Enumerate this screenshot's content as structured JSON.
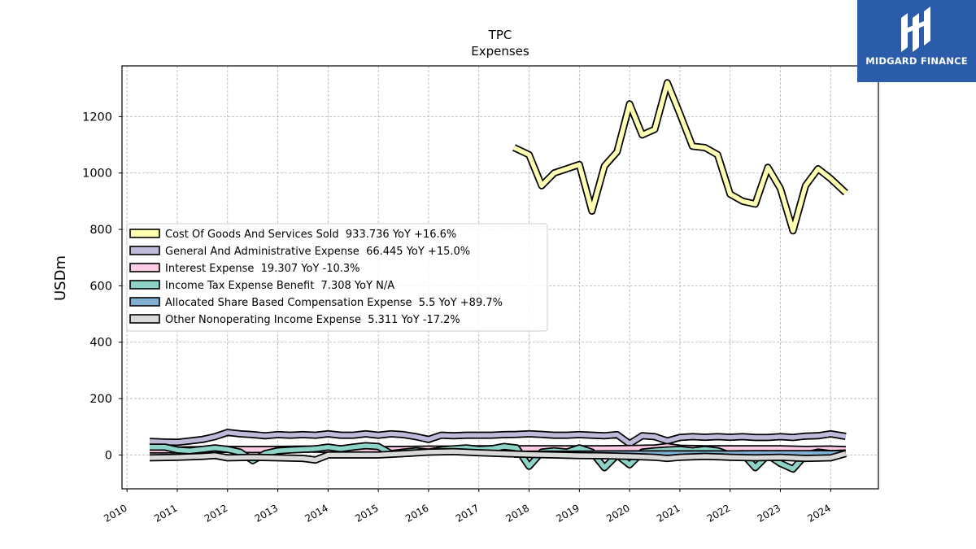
{
  "brand": {
    "name": "MIDGARD FINANCE",
    "bg_color": "#2a5caa"
  },
  "chart_data": {
    "type": "line",
    "title": "TPC",
    "subtitle": "Expenses",
    "xlabel": "",
    "ylabel": "USDm",
    "xlim": [
      2009.9,
      2024.95
    ],
    "ylim": [
      -120,
      1380
    ],
    "x_ticks": [
      2010,
      2011,
      2012,
      2013,
      2014,
      2015,
      2016,
      2017,
      2018,
      2019,
      2020,
      2021,
      2022,
      2023,
      2024
    ],
    "x_tick_labels": [
      "2010",
      "2011",
      "2012",
      "2013",
      "2014",
      "2015",
      "2016",
      "2017",
      "2018",
      "2019",
      "2020",
      "2021",
      "2022",
      "2023",
      "2024"
    ],
    "y_ticks": [
      0,
      200,
      400,
      600,
      800,
      1000,
      1200
    ],
    "y_tick_labels": [
      "0",
      "200",
      "400",
      "600",
      "800",
      "1000",
      "1200"
    ],
    "grid": true,
    "legend_position": "center-left",
    "series": [
      {
        "name": "Cost Of Goods And Services Sold",
        "legend_label": "Cost Of Goods And Services Sold  933.736 YoY +16.6%",
        "color": "#ffffb3",
        "x": [
          2017.7,
          2018.0,
          2018.25,
          2018.5,
          2018.75,
          2019.0,
          2019.25,
          2019.5,
          2019.75,
          2020.0,
          2020.25,
          2020.5,
          2020.75,
          2021.0,
          2021.25,
          2021.5,
          2021.75,
          2022.0,
          2022.25,
          2022.5,
          2022.75,
          2023.0,
          2023.25,
          2023.5,
          2023.75,
          2024.0,
          2024.3
        ],
        "values": [
          1090,
          1065,
          955,
          1000,
          1015,
          1030,
          865,
          1025,
          1075,
          1245,
          1135,
          1155,
          1320,
          1210,
          1095,
          1090,
          1065,
          925,
          900,
          890,
          1020,
          945,
          795,
          955,
          1015,
          980,
          930
        ]
      },
      {
        "name": "General And Administrative Expense",
        "legend_label": "General And Administrative Expense  66.445 YoY +15.0%",
        "color": "#bebada",
        "x": [
          2010.45,
          2010.75,
          2011.0,
          2011.25,
          2011.5,
          2011.75,
          2012.0,
          2012.25,
          2012.5,
          2012.75,
          2013.0,
          2013.25,
          2013.5,
          2013.75,
          2014.0,
          2014.25,
          2014.5,
          2014.75,
          2015.0,
          2015.25,
          2015.5,
          2015.75,
          2016.0,
          2016.25,
          2016.5,
          2016.75,
          2017.0,
          2017.25,
          2017.5,
          2017.75,
          2018.0,
          2018.25,
          2018.5,
          2018.75,
          2019.0,
          2019.25,
          2019.5,
          2019.75,
          2020.0,
          2020.25,
          2020.5,
          2020.75,
          2021.0,
          2021.25,
          2021.5,
          2021.75,
          2022.0,
          2022.25,
          2022.5,
          2022.75,
          2023.0,
          2023.25,
          2023.5,
          2023.75,
          2024.0,
          2024.3
        ],
        "values": [
          48,
          46,
          45,
          50,
          55,
          65,
          80,
          75,
          72,
          68,
          72,
          70,
          72,
          70,
          75,
          70,
          70,
          75,
          70,
          75,
          72,
          65,
          55,
          70,
          68,
          70,
          70,
          70,
          72,
          73,
          75,
          73,
          70,
          70,
          72,
          70,
          68,
          72,
          40,
          68,
          65,
          50,
          62,
          65,
          63,
          65,
          63,
          65,
          62,
          62,
          65,
          62,
          67,
          68,
          75,
          66
        ]
      },
      {
        "name": "Interest Expense",
        "legend_label": "Interest Expense  19.307 YoY -10.3%",
        "color": "#ffcce6",
        "x": [
          2010.45,
          2011.0,
          2011.5,
          2012.0,
          2012.5,
          2013.0,
          2013.5,
          2014.0,
          2014.5,
          2015.0,
          2015.5,
          2016.0,
          2016.5,
          2017.0,
          2017.5,
          2018.0,
          2018.5,
          2019.0,
          2019.5,
          2020.0,
          2020.5,
          2020.75,
          2021.0,
          2021.5,
          2022.0,
          2022.5,
          2023.0,
          2023.5,
          2024.0,
          2024.3
        ],
        "values": [
          18,
          18,
          19,
          20,
          19,
          20,
          21,
          20,
          20,
          19,
          20,
          21,
          21,
          22,
          22,
          22,
          22,
          22,
          22,
          23,
          25,
          30,
          24,
          22,
          22,
          22,
          22,
          20,
          21,
          19
        ]
      },
      {
        "name": "Income Tax Expense Benefit",
        "legend_label": "Income Tax Expense Benefit  7.308 YoY N/A",
        "color": "#8dd3c7",
        "x": [
          2010.45,
          2010.75,
          2011.0,
          2011.25,
          2011.5,
          2011.75,
          2012.0,
          2012.25,
          2012.5,
          2012.75,
          2013.0,
          2013.25,
          2013.5,
          2013.75,
          2014.0,
          2014.25,
          2014.5,
          2014.75,
          2015.0,
          2015.25,
          2015.5,
          2015.75,
          2016.0,
          2016.25,
          2016.5,
          2016.75,
          2017.0,
          2017.25,
          2017.5,
          2017.75,
          2018.0,
          2018.25,
          2018.5,
          2018.75,
          2019.0,
          2019.25,
          2019.5,
          2019.75,
          2020.0,
          2020.25,
          2020.5,
          2020.75,
          2021.0,
          2021.25,
          2021.5,
          2021.75,
          2022.0,
          2022.25,
          2022.5,
          2022.75,
          2023.0,
          2023.25,
          2023.5,
          2023.75,
          2024.0,
          2024.3
        ],
        "values": [
          28,
          28,
          18,
          15,
          20,
          25,
          20,
          10,
          -20,
          5,
          15,
          18,
          20,
          22,
          28,
          22,
          28,
          33,
          30,
          5,
          10,
          15,
          10,
          18,
          22,
          25,
          20,
          22,
          30,
          25,
          -40,
          10,
          15,
          10,
          25,
          10,
          -45,
          0,
          -35,
          10,
          15,
          18,
          20,
          15,
          20,
          15,
          0,
          5,
          -45,
          0,
          -30,
          -50,
          0,
          10,
          5,
          7
        ]
      },
      {
        "name": "Allocated Share Based Compensation Expense",
        "legend_label": "Allocated Share Based Compensation Expense  5.5 YoY +89.7%",
        "color": "#80b1d3",
        "x": [
          2017.7,
          2018.0,
          2018.5,
          2019.0,
          2019.5,
          2020.0,
          2020.5,
          2021.0,
          2021.5,
          2022.0,
          2022.5,
          2023.0,
          2023.5,
          2024.0,
          2024.3
        ],
        "values": [
          3,
          3,
          3,
          3,
          4,
          4,
          4,
          4,
          4,
          4,
          5,
          5,
          5,
          5,
          5.5
        ]
      },
      {
        "name": "Other Nonoperating Income Expense",
        "legend_label": "Other Nonoperating Income Expense  5.311 YoY -17.2%",
        "color": "#d9d9d9",
        "x": [
          2010.45,
          2011.0,
          2011.5,
          2011.75,
          2012.0,
          2012.5,
          2013.0,
          2013.5,
          2013.75,
          2014.0,
          2014.5,
          2015.0,
          2015.5,
          2016.0,
          2016.5,
          2017.0,
          2017.5,
          2018.0,
          2018.5,
          2019.0,
          2019.5,
          2020.0,
          2020.5,
          2020.75,
          2021.0,
          2021.5,
          2022.0,
          2022.5,
          2023.0,
          2023.5,
          2024.0,
          2024.3
        ],
        "values": [
          -10,
          -8,
          -5,
          -2,
          -10,
          -8,
          -10,
          -12,
          -18,
          0,
          0,
          0,
          5,
          10,
          12,
          8,
          5,
          2,
          0,
          -2,
          -3,
          -5,
          -8,
          -12,
          -8,
          -5,
          -8,
          -10,
          -8,
          -12,
          -10,
          5
        ]
      }
    ]
  }
}
